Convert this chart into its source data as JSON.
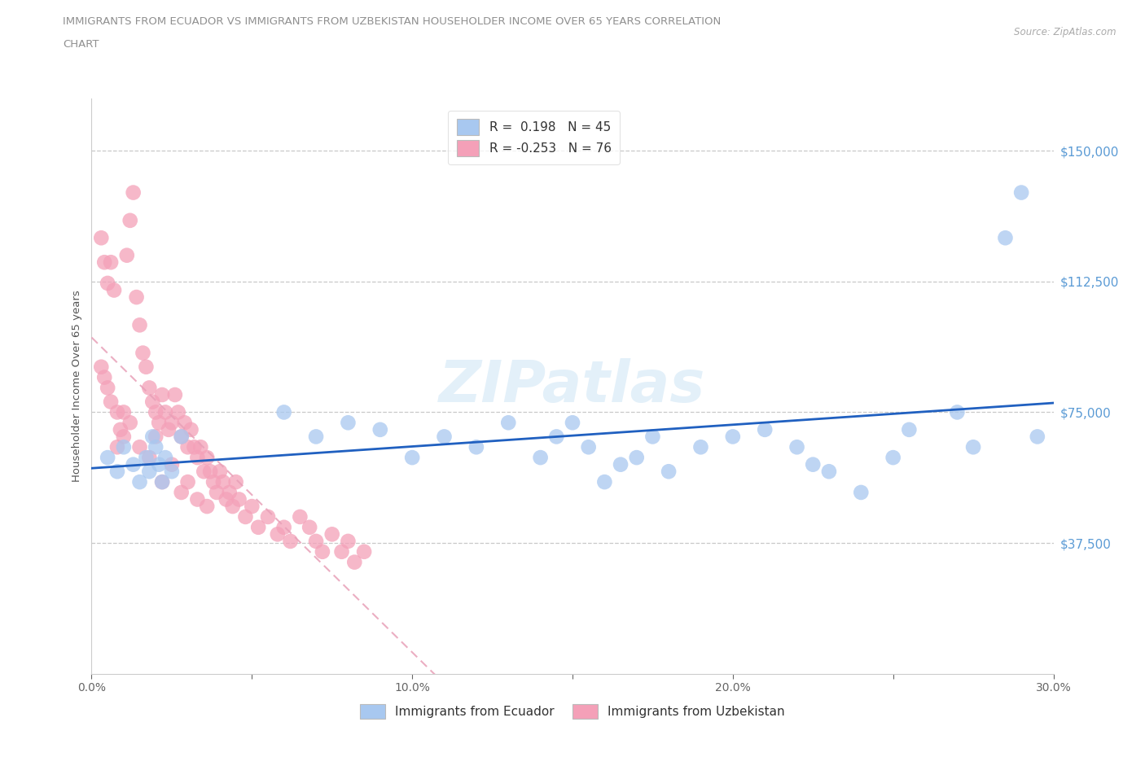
{
  "title_line1": "IMMIGRANTS FROM ECUADOR VS IMMIGRANTS FROM UZBEKISTAN HOUSEHOLDER INCOME OVER 65 YEARS CORRELATION",
  "title_line2": "CHART",
  "source": "Source: ZipAtlas.com",
  "ylabel": "Householder Income Over 65 years",
  "xlim": [
    0.0,
    0.3
  ],
  "ylim": [
    0,
    165000
  ],
  "yticks": [
    37500,
    75000,
    112500,
    150000
  ],
  "ytick_labels": [
    "$37,500",
    "$75,000",
    "$112,500",
    "$150,000"
  ],
  "xticks": [
    0.0,
    0.05,
    0.1,
    0.15,
    0.2,
    0.25,
    0.3
  ],
  "xtick_labels": [
    "0.0%",
    "",
    "10.0%",
    "",
    "20.0%",
    "",
    "30.0%"
  ],
  "ecuador_color": "#a8c8f0",
  "uzbekistan_color": "#f4a0b8",
  "ecuador_line_color": "#2060c0",
  "uzbekistan_line_color": "#e8a0b8",
  "ecuador_R": 0.198,
  "ecuador_N": 45,
  "uzbekistan_R": -0.253,
  "uzbekistan_N": 76,
  "legend_label_ecuador": "Immigrants from Ecuador",
  "legend_label_uzbekistan": "Immigrants from Uzbekistan",
  "watermark": "ZIPatlas",
  "background_color": "#ffffff",
  "grid_color": "#c8c8c8",
  "axis_label_color": "#5b9bd5",
  "title_color": "#909090",
  "ecuador_x": [
    0.005,
    0.008,
    0.01,
    0.013,
    0.015,
    0.017,
    0.018,
    0.019,
    0.02,
    0.021,
    0.022,
    0.023,
    0.025,
    0.028,
    0.06,
    0.07,
    0.08,
    0.09,
    0.1,
    0.11,
    0.12,
    0.13,
    0.14,
    0.145,
    0.15,
    0.155,
    0.16,
    0.165,
    0.17,
    0.175,
    0.18,
    0.19,
    0.2,
    0.21,
    0.22,
    0.225,
    0.23,
    0.24,
    0.25,
    0.255,
    0.27,
    0.275,
    0.285,
    0.29,
    0.295
  ],
  "ecuador_y": [
    62000,
    58000,
    65000,
    60000,
    55000,
    62000,
    58000,
    68000,
    65000,
    60000,
    55000,
    62000,
    58000,
    68000,
    75000,
    68000,
    72000,
    70000,
    62000,
    68000,
    65000,
    72000,
    62000,
    68000,
    72000,
    65000,
    55000,
    60000,
    62000,
    68000,
    58000,
    65000,
    68000,
    70000,
    65000,
    60000,
    58000,
    52000,
    62000,
    70000,
    75000,
    65000,
    125000,
    138000,
    68000
  ],
  "uzbekistan_x": [
    0.003,
    0.004,
    0.005,
    0.006,
    0.007,
    0.008,
    0.009,
    0.01,
    0.011,
    0.012,
    0.013,
    0.014,
    0.015,
    0.016,
    0.017,
    0.018,
    0.019,
    0.02,
    0.021,
    0.022,
    0.023,
    0.024,
    0.025,
    0.026,
    0.027,
    0.028,
    0.029,
    0.03,
    0.031,
    0.032,
    0.033,
    0.034,
    0.035,
    0.036,
    0.037,
    0.038,
    0.039,
    0.04,
    0.041,
    0.042,
    0.043,
    0.044,
    0.045,
    0.046,
    0.048,
    0.05,
    0.052,
    0.055,
    0.058,
    0.06,
    0.062,
    0.065,
    0.068,
    0.07,
    0.072,
    0.075,
    0.078,
    0.08,
    0.082,
    0.085,
    0.003,
    0.004,
    0.005,
    0.006,
    0.008,
    0.01,
    0.012,
    0.015,
    0.018,
    0.02,
    0.022,
    0.025,
    0.028,
    0.03,
    0.033,
    0.036
  ],
  "uzbekistan_y": [
    125000,
    118000,
    112000,
    118000,
    110000,
    65000,
    70000,
    75000,
    120000,
    130000,
    138000,
    108000,
    100000,
    92000,
    88000,
    82000,
    78000,
    75000,
    72000,
    80000,
    75000,
    70000,
    72000,
    80000,
    75000,
    68000,
    72000,
    65000,
    70000,
    65000,
    62000,
    65000,
    58000,
    62000,
    58000,
    55000,
    52000,
    58000,
    55000,
    50000,
    52000,
    48000,
    55000,
    50000,
    45000,
    48000,
    42000,
    45000,
    40000,
    42000,
    38000,
    45000,
    42000,
    38000,
    35000,
    40000,
    35000,
    38000,
    32000,
    35000,
    88000,
    85000,
    82000,
    78000,
    75000,
    68000,
    72000,
    65000,
    62000,
    68000,
    55000,
    60000,
    52000,
    55000,
    50000,
    48000
  ]
}
